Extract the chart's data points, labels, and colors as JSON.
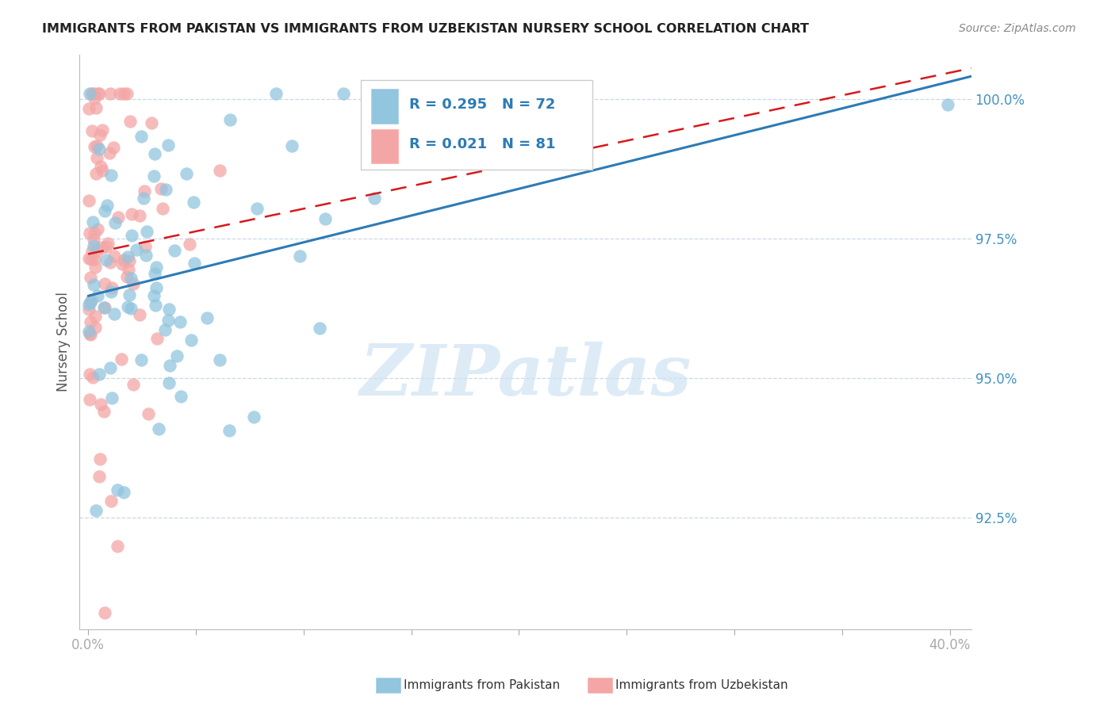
{
  "title": "IMMIGRANTS FROM PAKISTAN VS IMMIGRANTS FROM UZBEKISTAN NURSERY SCHOOL CORRELATION CHART",
  "source": "Source: ZipAtlas.com",
  "ylabel": "Nursery School",
  "ytick_labels": [
    "100.0%",
    "97.5%",
    "95.0%",
    "92.5%"
  ],
  "ytick_values": [
    1.0,
    0.975,
    0.95,
    0.925
  ],
  "y_min": 0.905,
  "y_max": 1.008,
  "x_min": -0.004,
  "x_max": 0.41,
  "legend_blue_label": "Immigrants from Pakistan",
  "legend_pink_label": "Immigrants from Uzbekistan",
  "R_blue": 0.295,
  "N_blue": 72,
  "R_pink": 0.021,
  "N_pink": 81,
  "blue_color": "#92c5de",
  "pink_color": "#f4a6a6",
  "blue_line_color": "#2c7bb6",
  "pink_line_color": "#d7191c",
  "grid_color": "#c8d8e8",
  "axis_color": "#4393c3",
  "legend_text_color": "#333333",
  "legend_value_color": "#2c7bb6",
  "watermark_color": "#cfe3f3"
}
